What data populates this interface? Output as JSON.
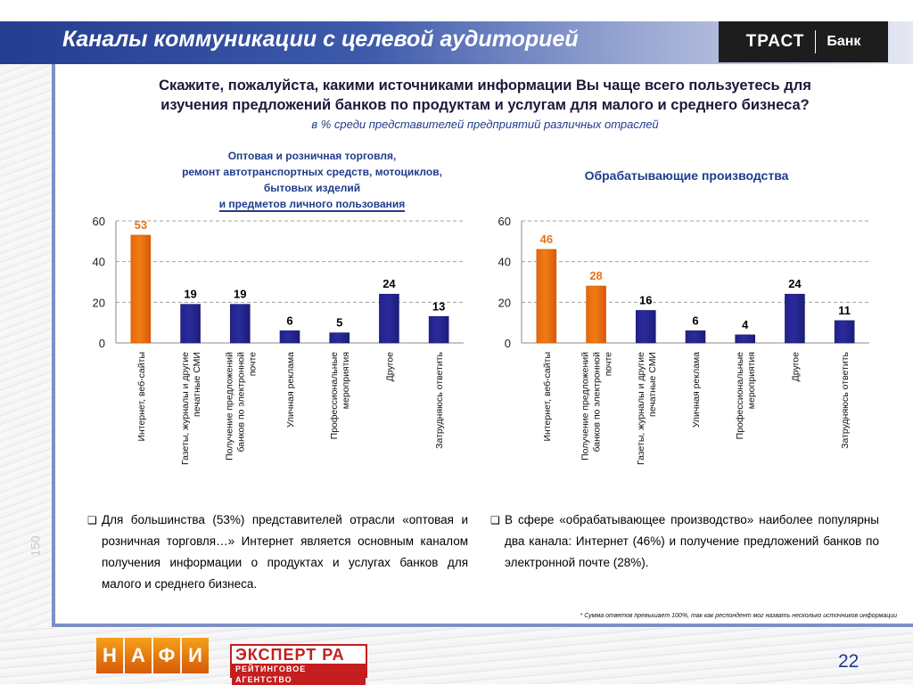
{
  "header": {
    "title": "Каналы коммуникации с целевой аудиторией",
    "logo_brand": "ТРАСТ",
    "logo_bank": "Банк"
  },
  "question": {
    "line1": "Скажите, пожалуйста, какими источниками информации Вы чаще всего пользуетесь для",
    "line2": "изучения предложений банков по продуктам и услугам для малого и среднего бизнеса?",
    "sub": "в % среди представителей предприятий различных отраслей"
  },
  "chart_data": [
    {
      "type": "bar",
      "title_lines": [
        "Оптовая и розничная торговля,",
        "ремонт автотранспортных средств, мотоциклов,",
        "бытовых изделий",
        "и предметов личного пользования"
      ],
      "categories": [
        [
          "Интернет, веб-сайты"
        ],
        [
          "Газеты, журналы и другие",
          "печатные СМИ"
        ],
        [
          "Получение предложений",
          "банков по электронной",
          "почте"
        ],
        [
          "Уличная реклама"
        ],
        [
          "Профессиональные",
          "мероприятия"
        ],
        [
          "Другое"
        ],
        [
          "Затрудняюсь ответить"
        ]
      ],
      "values": [
        53,
        19,
        19,
        6,
        5,
        24,
        13
      ],
      "highlight": [
        true,
        false,
        false,
        false,
        false,
        false,
        false
      ],
      "ylim": [
        0,
        60
      ],
      "yticks": [
        0,
        20,
        40,
        60
      ],
      "grid": true
    },
    {
      "type": "bar",
      "title_lines": [
        "Обрабатывающие производства"
      ],
      "categories": [
        [
          "Интернет, веб-сайты"
        ],
        [
          "Получение предложений",
          "банков по электронной",
          "почте"
        ],
        [
          "Газеты, журналы и другие",
          "печатные СМИ"
        ],
        [
          "Уличная реклама"
        ],
        [
          "Профессиональные",
          "мероприятия"
        ],
        [
          "Другое"
        ],
        [
          "Затрудняюсь ответить"
        ]
      ],
      "values": [
        46,
        28,
        16,
        6,
        4,
        24,
        11
      ],
      "highlight": [
        true,
        true,
        false,
        false,
        false,
        false,
        false
      ],
      "ylim": [
        0,
        60
      ],
      "yticks": [
        0,
        20,
        40,
        60
      ],
      "grid": true
    }
  ],
  "colors": {
    "highlight_bar": "#f07c14",
    "normal_bar": "#2b2b9c",
    "highlight_label": "#e8731a",
    "normal_label": "#000000",
    "title_blue": "#1f3c8c"
  },
  "notes": {
    "left": "Для большинства (53%) представителей отрасли «оптовая и розничная торговля…» Интернет является основным каналом получения информации о продуктах и услугах банков для малого и среднего бизнеса.",
    "right": "В сфере «обрабатывающее производство» наиболее популярны два канала: Интернет (46%) и получение предложений банков по электронной почте (28%)."
  },
  "footnote": "* Сумма ответов превышает 100%, так как респондент мог назвать несколько источников информации",
  "footer": {
    "nafi_letters": [
      "Н",
      "А",
      "Ф",
      "И"
    ],
    "expert_top": "ЭКСПЕРТ РА",
    "expert_bottom": "РЕЙТИНГОВОЕ АГЕНТСТВО",
    "page_number": "22",
    "side_number": "150"
  }
}
